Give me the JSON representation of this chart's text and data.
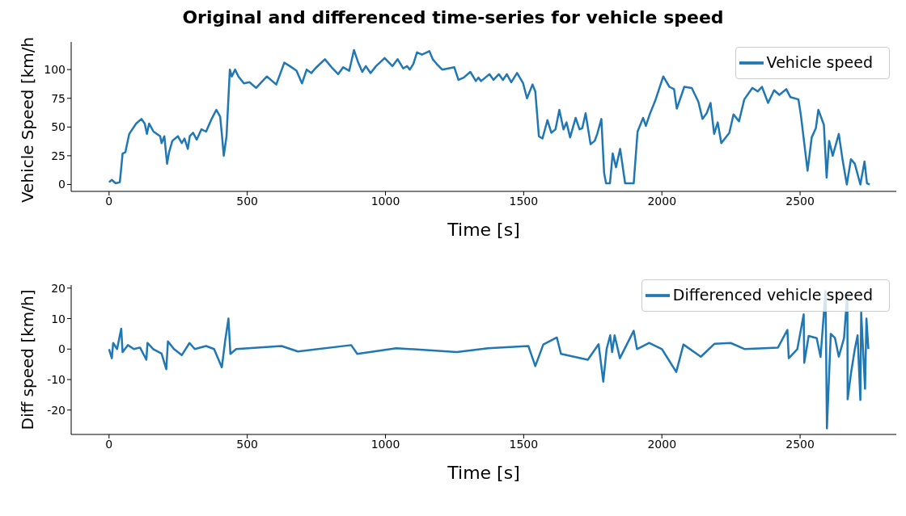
{
  "chart_data": [
    {
      "type": "line",
      "title": "Original and differenced time-series for vehicle speed",
      "xlabel": "Time [s]",
      "ylabel": "Vehicle Speed [km/h]",
      "legend": "top right",
      "xlim": [
        -137,
        2848
      ],
      "xticks": [
        0,
        500,
        1000,
        1500,
        2000,
        2500
      ],
      "ylim": [
        -6,
        124
      ],
      "yticks": [
        0,
        25,
        50,
        75,
        100
      ],
      "series": [
        {
          "name": "Vehicle speed",
          "color": "#1f77b4",
          "x": [
            0,
            10,
            24,
            39,
            49,
            59,
            73,
            98,
            117,
            129,
            137,
            145,
            161,
            185,
            190,
            200,
            210,
            217,
            229,
            249,
            263,
            273,
            285,
            292,
            304,
            317,
            334,
            351,
            371,
            388,
            402,
            408,
            415,
            425,
            437,
            444,
            456,
            468,
            488,
            508,
            532,
            551,
            571,
            605,
            634,
            654,
            678,
            698,
            715,
            732,
            746,
            781,
            805,
            829,
            847,
            869,
            886,
            900,
            916,
            929,
            946,
            966,
            997,
            1025,
            1044,
            1064,
            1078,
            1088,
            1101,
            1114,
            1132,
            1159,
            1171,
            1185,
            1205,
            1249,
            1264,
            1283,
            1307,
            1327,
            1336,
            1346,
            1376,
            1391,
            1410,
            1425,
            1439,
            1455,
            1476,
            1498,
            1512,
            1532,
            1542,
            1555,
            1568,
            1586,
            1600,
            1615,
            1629,
            1644,
            1655,
            1668,
            1688,
            1702,
            1712,
            1724,
            1742,
            1757,
            1766,
            1781,
            1791,
            1798,
            1812,
            1822,
            1834,
            1849,
            1867,
            1898,
            1912,
            1932,
            1942,
            1956,
            1976,
            2005,
            2027,
            2044,
            2054,
            2081,
            2108,
            2132,
            2147,
            2162,
            2176,
            2189,
            2202,
            2215,
            2244,
            2259,
            2279,
            2298,
            2327,
            2347,
            2362,
            2384,
            2406,
            2425,
            2450,
            2465,
            2494,
            2503,
            2527,
            2542,
            2557,
            2566,
            2586,
            2596,
            2605,
            2618,
            2640,
            2654,
            2669,
            2684,
            2698,
            2718,
            2733,
            2742,
            2752
          ],
          "values": [
            2,
            4,
            1,
            2,
            27,
            28,
            44,
            53,
            57,
            53,
            44,
            53,
            46,
            42,
            36,
            42,
            18,
            28,
            38,
            42,
            36,
            40,
            31,
            42,
            45,
            39,
            48,
            46,
            57,
            65,
            59,
            44,
            25,
            42,
            100,
            94,
            100,
            94,
            88,
            89,
            84,
            89,
            94,
            87,
            106,
            103,
            99,
            88,
            100,
            97,
            101,
            109,
            102,
            96,
            102,
            99,
            117,
            107,
            98,
            103,
            97,
            103,
            110,
            103,
            109,
            101,
            103,
            100,
            105,
            115,
            113,
            116,
            109,
            105,
            100,
            102,
            91,
            93,
            98,
            90,
            93,
            90,
            96,
            91,
            96,
            91,
            96,
            89,
            97,
            88,
            75,
            87,
            81,
            42,
            40,
            56,
            45,
            48,
            65,
            48,
            54,
            41,
            58,
            48,
            49,
            62,
            35,
            38,
            44,
            57,
            10,
            1,
            1,
            27,
            15,
            31,
            1,
            1,
            46,
            58,
            51,
            61,
            73,
            94,
            85,
            83,
            66,
            85,
            84,
            72,
            57,
            62,
            71,
            44,
            54,
            36,
            45,
            61,
            55,
            74,
            84,
            81,
            85,
            71,
            82,
            78,
            83,
            76,
            74,
            60,
            12,
            41,
            49,
            65,
            52,
            6,
            38,
            25,
            44,
            21,
            0,
            22,
            18,
            0,
            20,
            1,
            0
          ]
        }
      ]
    },
    {
      "type": "line",
      "xlabel": "Time [s]",
      "ylabel": "Diff speed [km/h]",
      "legend": "top right",
      "xlim": [
        -137,
        2848
      ],
      "xticks": [
        0,
        500,
        1000,
        1500,
        2000,
        2500
      ],
      "ylim": [
        -28,
        21
      ],
      "yticks": [
        -20,
        -10,
        0,
        10,
        20
      ],
      "series": [
        {
          "name": "Differenced vehicle speed",
          "color": "#1f77b4",
          "x": [
            0,
            10,
            15,
            29,
            44,
            49,
            68,
            90,
            112,
            135,
            139,
            160,
            190,
            207,
            213,
            235,
            263,
            291,
            310,
            351,
            380,
            408,
            420,
            432,
            439,
            460,
            624,
            683,
            876,
            898,
            1039,
            1258,
            1371,
            1517,
            1542,
            1571,
            1620,
            1635,
            1732,
            1771,
            1788,
            1800,
            1813,
            1820,
            1829,
            1848,
            1898,
            1910,
            1954,
            2000,
            2052,
            2078,
            2141,
            2190,
            2249,
            2300,
            2420,
            2454,
            2459,
            2490,
            2513,
            2515,
            2531,
            2560,
            2574,
            2592,
            2597,
            2611,
            2626,
            2640,
            2659,
            2671,
            2672,
            2684,
            2698,
            2708,
            2718,
            2721,
            2735,
            2740,
            2747
          ],
          "values": [
            0,
            -3,
            2,
            0,
            6.7,
            -1,
            1.3,
            0,
            0.5,
            -3.5,
            2,
            0,
            -1.5,
            -6.6,
            2.5,
            0,
            -2,
            2,
            0,
            1,
            0,
            -6,
            2.7,
            10,
            -1.6,
            0,
            1,
            -0.8,
            1.3,
            -1.6,
            0.3,
            -1,
            0.3,
            1,
            -5.6,
            1.5,
            3.8,
            -1.6,
            -3.5,
            1.6,
            -10.7,
            0,
            4.5,
            -1,
            4.5,
            -3,
            6,
            0,
            2,
            0,
            -7.5,
            1.5,
            -2.5,
            1.7,
            2,
            0,
            0.5,
            6.3,
            -3,
            0,
            11.4,
            -4.5,
            4.3,
            3.6,
            -2.6,
            19,
            -26,
            5,
            3.7,
            -2.5,
            3.6,
            18.6,
            -16.5,
            -8,
            0,
            4.5,
            -16.7,
            12,
            -13,
            10,
            0
          ]
        }
      ]
    }
  ]
}
